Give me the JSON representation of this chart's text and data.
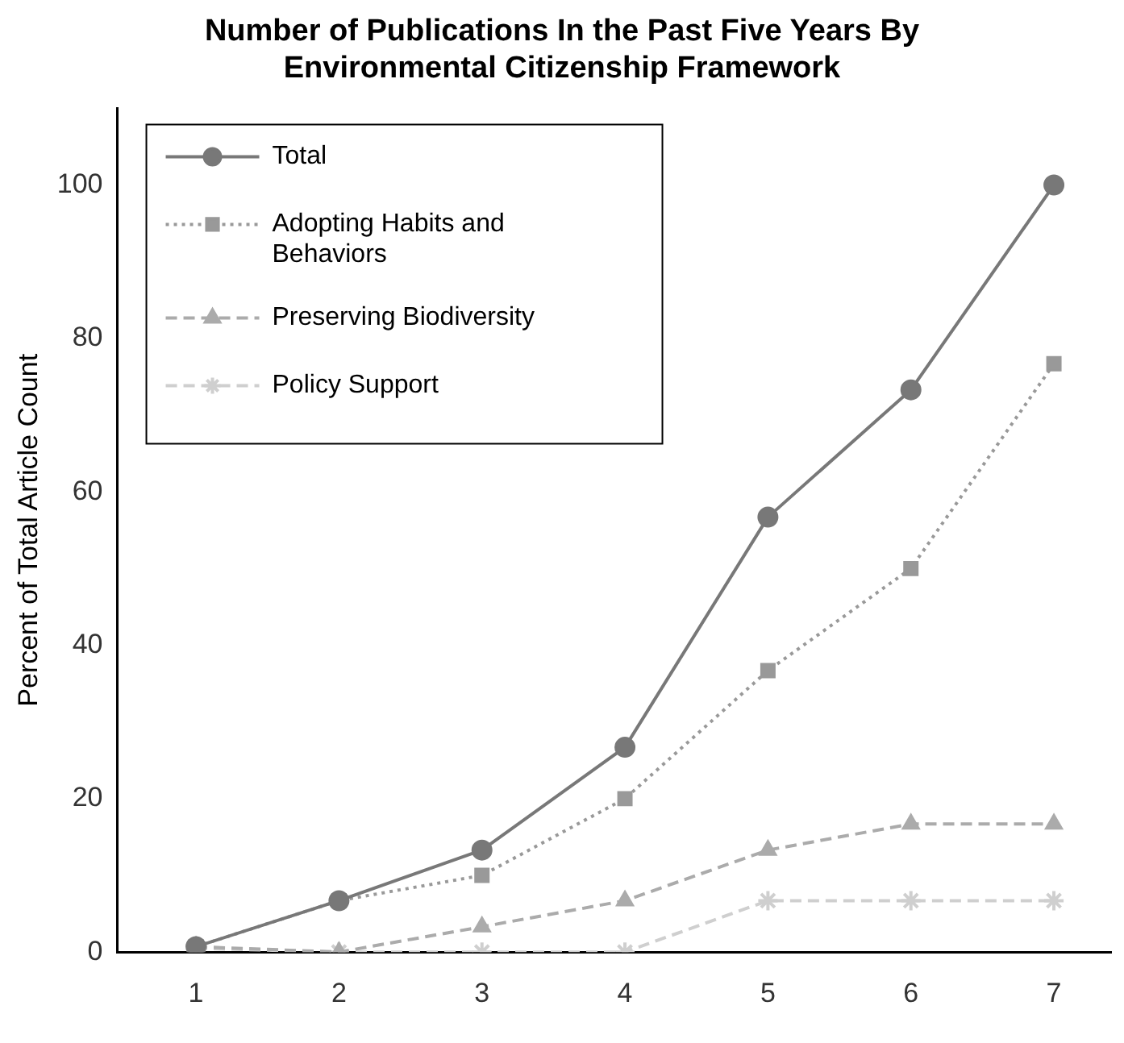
{
  "chart_data": {
    "type": "line",
    "title": "Number of Publications In the Past Five Years By Environmental Citizenship Framework",
    "ylabel": "Percent of Total Article Count",
    "x": [
      1,
      2,
      3,
      4,
      5,
      6,
      7
    ],
    "xlim": [
      0.45,
      7.4
    ],
    "xticks": [
      1,
      2,
      3,
      4,
      5,
      6,
      7
    ],
    "ylim": [
      0,
      110
    ],
    "yticks": [
      0,
      20,
      40,
      60,
      80,
      100
    ],
    "grid": false,
    "legend": "top left",
    "series": [
      {
        "name": "Total",
        "color": "#787878",
        "values": [
          0.7,
          6.7,
          13.3,
          26.7,
          56.7,
          73.3,
          100
        ],
        "marker": "circle",
        "line_style": "solid"
      },
      {
        "name": "Adopting Habits and Behaviors",
        "color": "#999999",
        "values": [
          0.7,
          6.7,
          10,
          20,
          36.7,
          50,
          76.7
        ],
        "marker": "square",
        "line_style": "dotted"
      },
      {
        "name": "Preserving Biodiversity",
        "color": "#ababab",
        "values": [
          0.7,
          0,
          3.3,
          6.7,
          13.3,
          16.7,
          16.7
        ],
        "marker": "triangle",
        "line_style": "dashed"
      },
      {
        "name": "Policy Support",
        "color": "#cfcfcf",
        "values": [
          0.5,
          0,
          0,
          0,
          6.7,
          6.7,
          6.7
        ],
        "marker": "cross",
        "line_style": "dashed"
      }
    ]
  }
}
